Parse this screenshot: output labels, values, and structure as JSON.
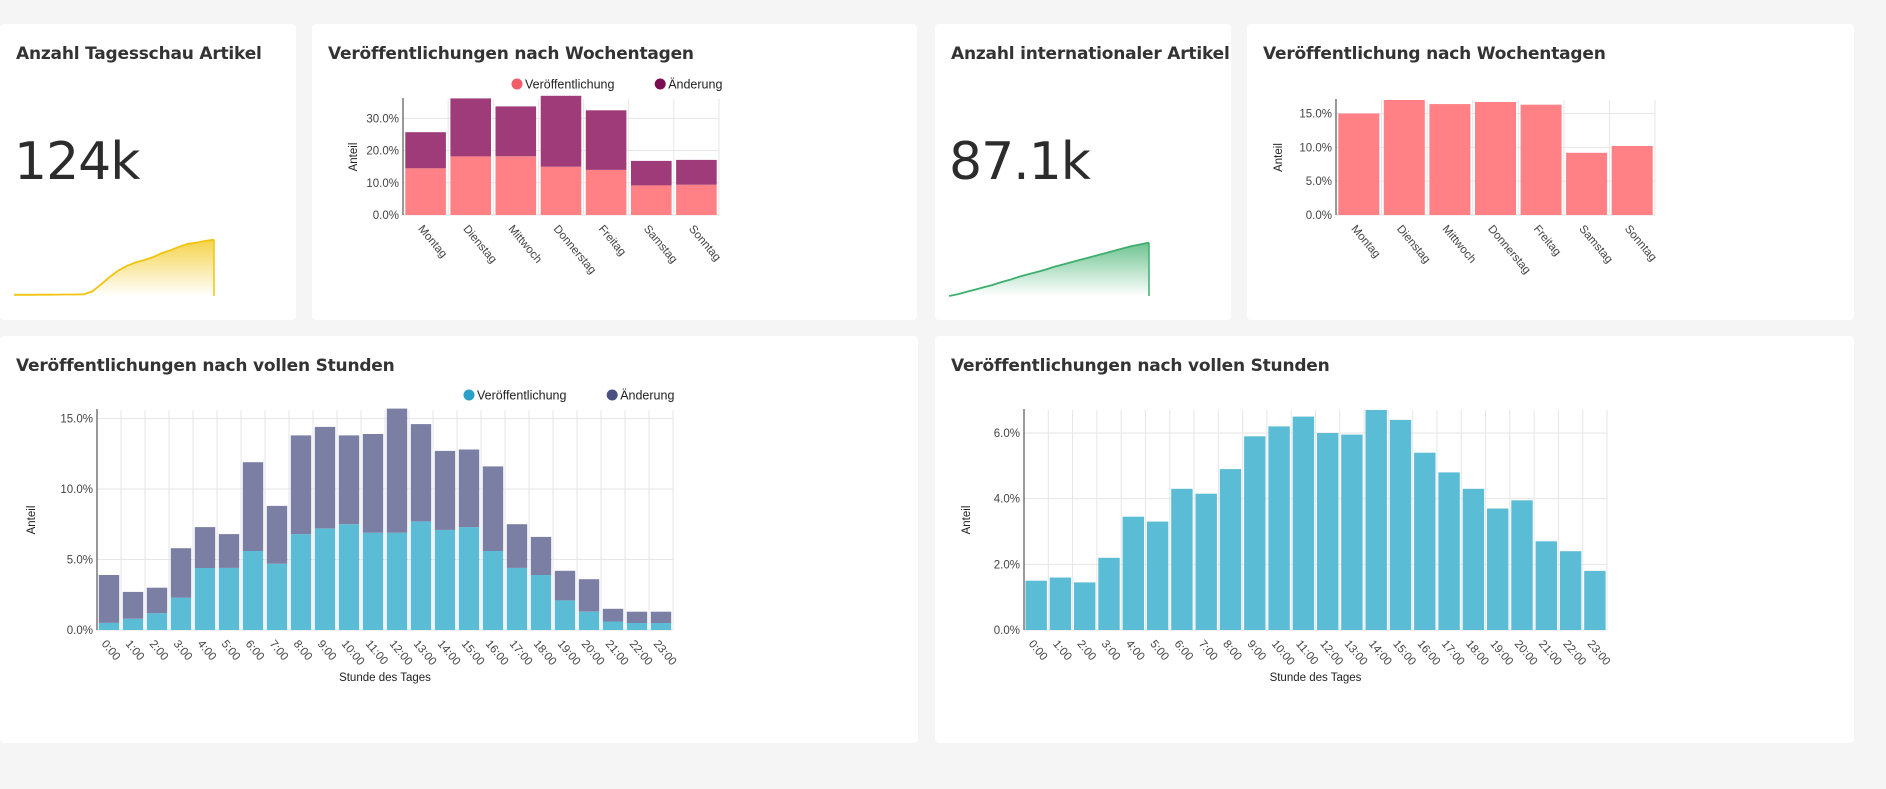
{
  "cards": {
    "tagesschau_total": {
      "title": "Anzahl Tagesschau Artikel",
      "value": "124k",
      "sparkline_color": "#f2c40f",
      "sparkline": [
        0.02,
        0.02,
        0.021,
        0.022,
        0.023,
        0.024,
        0.025,
        0.026,
        0.03,
        0.08,
        0.2,
        0.33,
        0.44,
        0.52,
        0.58,
        0.62,
        0.67,
        0.74,
        0.79,
        0.85,
        0.9,
        0.92,
        0.95,
        0.97
      ]
    },
    "international_total": {
      "title": "Anzahl internationaler Artikel",
      "value": "87.1k",
      "sparkline_color": "#3daf6d",
      "sparkline": [
        0.0,
        0.03,
        0.07,
        0.11,
        0.15,
        0.19,
        0.24,
        0.28,
        0.33,
        0.37,
        0.41,
        0.45,
        0.5,
        0.54,
        0.58,
        0.62,
        0.66,
        0.7,
        0.74,
        0.78,
        0.82,
        0.86,
        0.89,
        0.92
      ]
    }
  },
  "chart_data": [
    {
      "id": "weekday_stacked",
      "type": "bar",
      "stacked": true,
      "title": "Veröffentlichungen nach Wochentagen",
      "ylabel": "Anteil",
      "xlabel": "",
      "ylim": [
        0,
        36
      ],
      "yticks": [
        0,
        10,
        20,
        30
      ],
      "ytick_labels": [
        "0.0%",
        "10.0%",
        "20.0%",
        "30.0%"
      ],
      "legend_position": "top-center",
      "categories": [
        "Montag",
        "Dienstag",
        "Mittwoch",
        "Donnerstag",
        "Freitag",
        "Samstag",
        "Sonntag"
      ],
      "series": [
        {
          "name": "Veröffentlichung",
          "color": "#ff8085",
          "legend_color": "#f05d66",
          "values": [
            14.5,
            18.2,
            18.2,
            15.0,
            14.0,
            9.2,
            9.4
          ]
        },
        {
          "name": "Änderung",
          "color": "#9e3b78",
          "legend_color": "#7a0d52",
          "values": [
            11.2,
            18.0,
            15.5,
            22.0,
            18.5,
            7.6,
            7.7
          ]
        }
      ]
    },
    {
      "id": "weekday_international",
      "type": "bar",
      "title": "Veröffentlichung nach Wochentagen",
      "ylabel": "Anteil",
      "xlabel": "",
      "ylim": [
        0,
        17
      ],
      "yticks": [
        0,
        5,
        10,
        15
      ],
      "ytick_labels": [
        "0.0%",
        "5.0%",
        "10.0%",
        "15.0%"
      ],
      "categories": [
        "Montag",
        "Dienstag",
        "Mittwoch",
        "Donnerstag",
        "Freitag",
        "Samstag",
        "Sonntag"
      ],
      "series": [
        {
          "name": "",
          "color": "#ff8085",
          "values": [
            15.0,
            17.0,
            16.4,
            16.7,
            16.3,
            9.2,
            10.2
          ]
        }
      ]
    },
    {
      "id": "hourly_stacked",
      "type": "bar",
      "stacked": true,
      "title": "Veröffentlichungen nach vollen Stunden",
      "ylabel": "Anteil",
      "xlabel": "Stunde des Tages",
      "ylim": [
        0,
        15.6
      ],
      "yticks": [
        0,
        5,
        10,
        15
      ],
      "ytick_labels": [
        "0.0%",
        "5.0%",
        "10.0%",
        "15.0%"
      ],
      "legend_position": "top-center",
      "categories": [
        "0:00",
        "1:00",
        "2:00",
        "3:00",
        "4:00",
        "5:00",
        "6:00",
        "7:00",
        "8:00",
        "9:00",
        "10:00",
        "11:00",
        "12:00",
        "13:00",
        "14:00",
        "15:00",
        "16:00",
        "17:00",
        "18:00",
        "19:00",
        "20:00",
        "21:00",
        "22:00",
        "23:00"
      ],
      "series": [
        {
          "name": "Veröffentlichung",
          "color": "#5bbcd6",
          "legend_color": "#2aa0c8",
          "values": [
            0.5,
            0.8,
            1.2,
            2.3,
            4.4,
            4.4,
            5.6,
            4.7,
            6.8,
            7.2,
            7.5,
            6.9,
            6.9,
            7.7,
            7.1,
            7.3,
            5.6,
            4.4,
            3.9,
            2.1,
            1.3,
            0.6,
            0.5,
            0.5
          ]
        },
        {
          "name": "Änderung",
          "color": "#7a7fa3",
          "legend_color": "#4a5080",
          "values": [
            3.4,
            1.9,
            1.8,
            3.5,
            2.9,
            2.4,
            6.3,
            4.1,
            7.0,
            7.2,
            6.3,
            7.0,
            8.8,
            6.9,
            5.6,
            5.5,
            6.0,
            3.1,
            2.7,
            2.1,
            2.3,
            0.9,
            0.8,
            0.8
          ]
        }
      ]
    },
    {
      "id": "hourly_international",
      "type": "bar",
      "title": "Veröffentlichungen nach vollen Stunden",
      "ylabel": "Anteil",
      "xlabel": "Stunde des Tages",
      "ylim": [
        0,
        6.7
      ],
      "yticks": [
        0,
        2,
        4,
        6
      ],
      "ytick_labels": [
        "0.0%",
        "2.0%",
        "4.0%",
        "6.0%"
      ],
      "categories": [
        "0:00",
        "1:00",
        "2:00",
        "3:00",
        "4:00",
        "5:00",
        "6:00",
        "7:00",
        "8:00",
        "9:00",
        "10:00",
        "11:00",
        "12:00",
        "13:00",
        "14:00",
        "15:00",
        "16:00",
        "17:00",
        "18:00",
        "19:00",
        "20:00",
        "21:00",
        "22:00",
        "23:00"
      ],
      "series": [
        {
          "name": "",
          "color": "#5bbcd6",
          "values": [
            1.5,
            1.6,
            1.45,
            2.2,
            3.45,
            3.3,
            4.3,
            4.15,
            4.9,
            5.9,
            6.2,
            6.5,
            6.0,
            5.95,
            6.7,
            6.4,
            5.4,
            4.8,
            4.3,
            3.7,
            3.95,
            2.7,
            2.4,
            1.8
          ]
        }
      ]
    }
  ]
}
